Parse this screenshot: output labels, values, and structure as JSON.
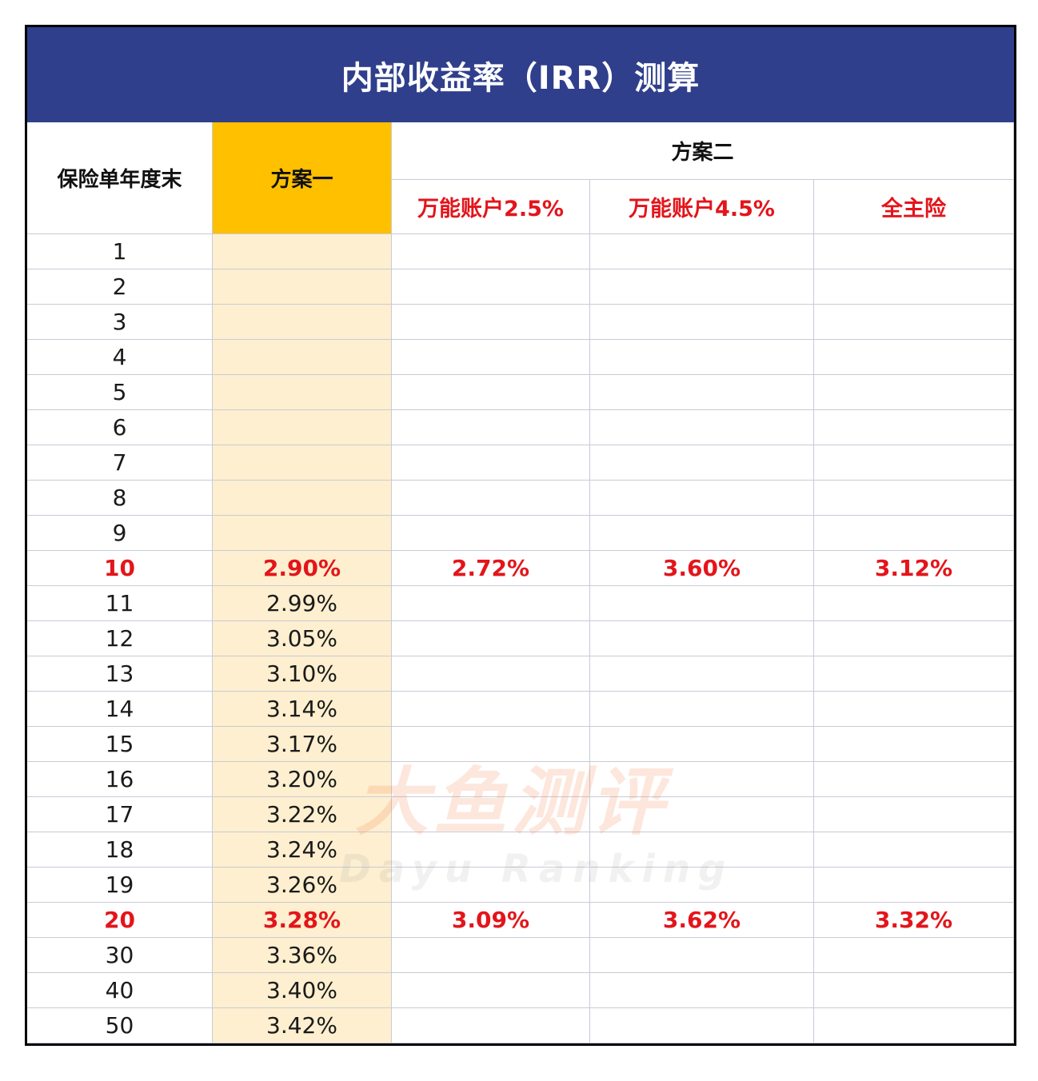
{
  "title": "内部收益率（IRR）测算",
  "headers": {
    "year_col": "保险单年度末",
    "plan1": "方案一",
    "plan2": "方案二",
    "plan2_sub": [
      "万能账户2.5%",
      "万能账户4.5%",
      "全主险"
    ]
  },
  "rows": [
    {
      "year": "1",
      "p1": "",
      "u25": "",
      "u45": "",
      "main": "",
      "highlight": false
    },
    {
      "year": "2",
      "p1": "",
      "u25": "",
      "u45": "",
      "main": "",
      "highlight": false
    },
    {
      "year": "3",
      "p1": "",
      "u25": "",
      "u45": "",
      "main": "",
      "highlight": false
    },
    {
      "year": "4",
      "p1": "",
      "u25": "",
      "u45": "",
      "main": "",
      "highlight": false
    },
    {
      "year": "5",
      "p1": "",
      "u25": "",
      "u45": "",
      "main": "",
      "highlight": false
    },
    {
      "year": "6",
      "p1": "",
      "u25": "",
      "u45": "",
      "main": "",
      "highlight": false
    },
    {
      "year": "7",
      "p1": "",
      "u25": "",
      "u45": "",
      "main": "",
      "highlight": false
    },
    {
      "year": "8",
      "p1": "",
      "u25": "",
      "u45": "",
      "main": "",
      "highlight": false
    },
    {
      "year": "9",
      "p1": "",
      "u25": "",
      "u45": "",
      "main": "",
      "highlight": false
    },
    {
      "year": "10",
      "p1": "2.90%",
      "u25": "2.72%",
      "u45": "3.60%",
      "main": "3.12%",
      "highlight": true
    },
    {
      "year": "11",
      "p1": "2.99%",
      "u25": "",
      "u45": "",
      "main": "",
      "highlight": false
    },
    {
      "year": "12",
      "p1": "3.05%",
      "u25": "",
      "u45": "",
      "main": "",
      "highlight": false
    },
    {
      "year": "13",
      "p1": "3.10%",
      "u25": "",
      "u45": "",
      "main": "",
      "highlight": false
    },
    {
      "year": "14",
      "p1": "3.14%",
      "u25": "",
      "u45": "",
      "main": "",
      "highlight": false
    },
    {
      "year": "15",
      "p1": "3.17%",
      "u25": "",
      "u45": "",
      "main": "",
      "highlight": false
    },
    {
      "year": "16",
      "p1": "3.20%",
      "u25": "",
      "u45": "",
      "main": "",
      "highlight": false
    },
    {
      "year": "17",
      "p1": "3.22%",
      "u25": "",
      "u45": "",
      "main": "",
      "highlight": false
    },
    {
      "year": "18",
      "p1": "3.24%",
      "u25": "",
      "u45": "",
      "main": "",
      "highlight": false
    },
    {
      "year": "19",
      "p1": "3.26%",
      "u25": "",
      "u45": "",
      "main": "",
      "highlight": false
    },
    {
      "year": "20",
      "p1": "3.28%",
      "u25": "3.09%",
      "u45": "3.62%",
      "main": "3.32%",
      "highlight": true
    },
    {
      "year": "30",
      "p1": "3.36%",
      "u25": "",
      "u45": "",
      "main": "",
      "highlight": false
    },
    {
      "year": "40",
      "p1": "3.40%",
      "u25": "",
      "u45": "",
      "main": "",
      "highlight": false
    },
    {
      "year": "50",
      "p1": "3.42%",
      "u25": "",
      "u45": "",
      "main": "",
      "highlight": false
    }
  ],
  "watermark": {
    "cn": "大鱼测评",
    "en": "Dayu Ranking"
  },
  "colors": {
    "title_bg": "#2f3f8c",
    "plan1_header": "#ffc000",
    "plan1_column": "#fdefcf",
    "highlight_red": "#e3151b"
  }
}
